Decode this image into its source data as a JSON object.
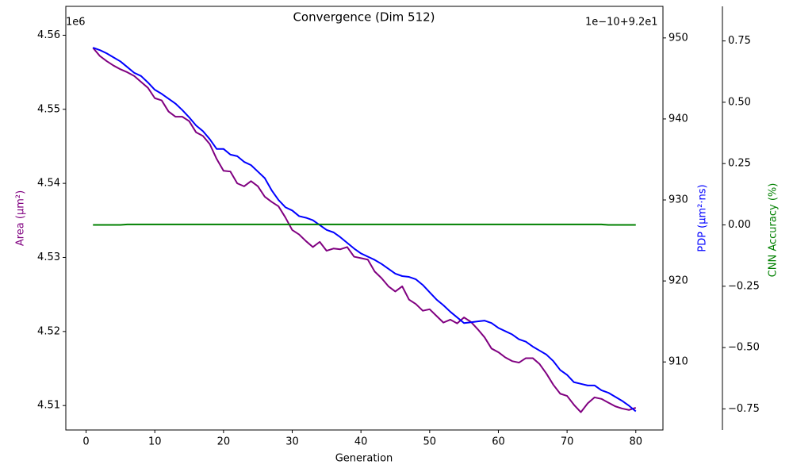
{
  "chart_data": {
    "type": "line",
    "title": "Convergence (Dim 512)",
    "xlabel": "Generation",
    "ylabel": "Area (μm²)",
    "y2label": "PDP (μm²·ns)",
    "y3label": "CNN Accuracy (%)",
    "yoffset": "1e6",
    "y2offset": "1e−10+9.2e1",
    "x": [
      1,
      2,
      3,
      4,
      5,
      6,
      7,
      8,
      9,
      10,
      11,
      12,
      13,
      14,
      15,
      16,
      17,
      18,
      19,
      20,
      21,
      22,
      23,
      24,
      25,
      26,
      27,
      28,
      29,
      30,
      31,
      32,
      33,
      34,
      35,
      36,
      37,
      38,
      39,
      40,
      41,
      42,
      43,
      44,
      45,
      46,
      47,
      48,
      49,
      50,
      51,
      52,
      53,
      54,
      55,
      56,
      57,
      58,
      59,
      60,
      61,
      62,
      63,
      64,
      65,
      66,
      67,
      68,
      69,
      70,
      71,
      72,
      73,
      74,
      75,
      76,
      77,
      78,
      79,
      80
    ],
    "xlim": [
      -2.95,
      83.95
    ],
    "xticks": [
      0,
      10,
      20,
      30,
      40,
      50,
      60,
      70,
      80
    ],
    "ylim": [
      4.5067,
      4.5639
    ],
    "yticks": [
      4.51,
      4.52,
      4.53,
      4.54,
      4.55,
      4.56
    ],
    "y2lim": [
      901.6,
      953.9
    ],
    "y2ticks": [
      910,
      920,
      930,
      940,
      950
    ],
    "y3lim": [
      -0.836,
      0.891
    ],
    "y3ticks": [
      {
        "value": -0.75,
        "label": "−0.75"
      },
      {
        "value": -0.5,
        "label": "−0.50"
      },
      {
        "value": -0.25,
        "label": "−0.25"
      },
      {
        "value": 0,
        "label": "0.00"
      },
      0.25,
      {
        "value": 0.5,
        "label": "0.50"
      },
      0.75
    ],
    "series": [
      {
        "name": "Area",
        "color": "#800080",
        "axis": "y",
        "values": [
          4.5583,
          4.5572,
          4.5565,
          4.5559,
          4.5554,
          4.555,
          4.5545,
          4.5537,
          4.5529,
          4.5515,
          4.5512,
          4.5497,
          4.549,
          4.549,
          4.5484,
          4.5469,
          4.5464,
          4.5453,
          4.5433,
          4.5417,
          4.5416,
          4.54,
          4.5396,
          4.5403,
          4.5396,
          4.5382,
          4.5375,
          4.5369,
          4.5354,
          4.5337,
          4.5331,
          4.5322,
          4.5314,
          4.5321,
          4.5309,
          4.5312,
          4.5311,
          4.5314,
          4.5301,
          4.5299,
          4.5297,
          4.5281,
          4.5272,
          4.5261,
          4.5254,
          4.5261,
          4.5243,
          4.5237,
          4.5228,
          4.523,
          4.5221,
          4.5212,
          4.5216,
          4.5211,
          4.5219,
          4.5213,
          4.5203,
          4.5192,
          4.5177,
          4.5172,
          4.5165,
          4.516,
          4.5158,
          4.5164,
          4.5164,
          4.5156,
          4.5143,
          4.5128,
          4.5116,
          4.5113,
          4.5101,
          4.5091,
          4.5103,
          4.5111,
          4.5109,
          4.5104,
          4.5099,
          4.5096,
          4.5094,
          4.5097
        ]
      },
      {
        "name": "PDP",
        "color": "#0000ff",
        "axis": "y2",
        "values": [
          948.8,
          948.5,
          948.1,
          947.6,
          947.1,
          946.4,
          945.7,
          945.3,
          944.5,
          943.6,
          943.1,
          942.5,
          941.9,
          941.1,
          940.2,
          939.2,
          938.5,
          937.5,
          936.3,
          936.3,
          935.6,
          935.4,
          934.7,
          934.3,
          933.5,
          932.7,
          931.2,
          930,
          929.1,
          928.7,
          928,
          927.8,
          927.5,
          926.9,
          926.3,
          926,
          925.4,
          924.7,
          924,
          923.4,
          923,
          922.6,
          922.1,
          921.5,
          920.9,
          920.6,
          920.5,
          920.2,
          919.5,
          918.6,
          917.7,
          917,
          916.2,
          915.5,
          914.8,
          914.9,
          915,
          915.1,
          914.8,
          914.2,
          913.8,
          913.4,
          912.8,
          912.5,
          911.9,
          911.4,
          910.9,
          910.1,
          909,
          908.4,
          907.5,
          907.3,
          907.1,
          907.1,
          906.5,
          906.2,
          905.7,
          905.2,
          904.6,
          903.9
        ]
      },
      {
        "name": "CNN Accuracy",
        "color": "#008000",
        "axis": "y3",
        "values": [
          0,
          0,
          0,
          0,
          0,
          0.002,
          0.002,
          0.002,
          0.002,
          0.002,
          0.002,
          0.002,
          0.002,
          0.002,
          0.002,
          0.002,
          0.002,
          0.002,
          0.002,
          0.002,
          0.002,
          0.002,
          0.002,
          0.002,
          0.002,
          0.002,
          0.002,
          0.002,
          0.002,
          0.002,
          0.002,
          0.002,
          0.002,
          0.002,
          0.002,
          0.002,
          0.002,
          0.002,
          0.002,
          0.002,
          0.002,
          0.002,
          0.002,
          0.002,
          0.002,
          0.002,
          0.002,
          0.002,
          0.002,
          0.002,
          0.002,
          0.002,
          0.002,
          0.002,
          0.002,
          0.002,
          0.002,
          0.002,
          0.002,
          0.002,
          0.002,
          0.002,
          0.002,
          0.002,
          0.002,
          0.002,
          0.002,
          0.002,
          0.002,
          0.002,
          0.002,
          0.002,
          0.002,
          0.002,
          0.002,
          0,
          0,
          0,
          0,
          0
        ]
      }
    ]
  }
}
